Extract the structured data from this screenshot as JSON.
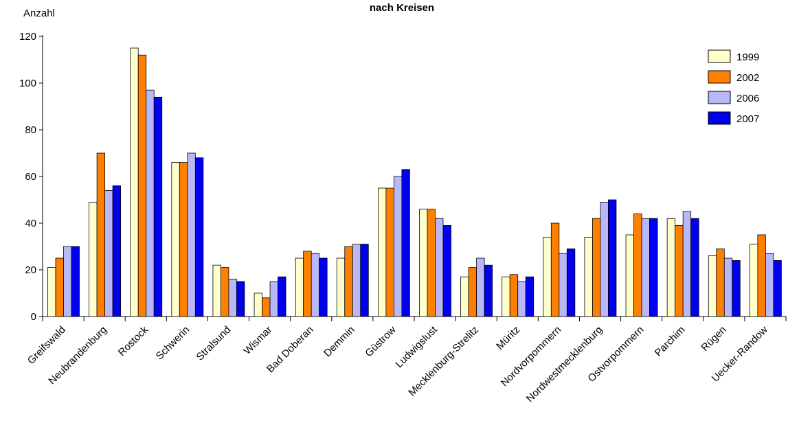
{
  "chart_data": {
    "type": "bar",
    "title": "nach Kreisen",
    "ylabel": "Anzahl",
    "xlabel": "",
    "ylim": [
      0,
      120
    ],
    "yticks": [
      0,
      20,
      40,
      60,
      80,
      100,
      120
    ],
    "legend_position": "top-right",
    "categories": [
      "Greifswald",
      "Neubrandenburg",
      "Rostock",
      "Schwerin",
      "Stralsund",
      "Wismar",
      "Bad Doberan",
      "Demmin",
      "Güstrow",
      "Ludwigslust",
      "Mecklenburg-Strelitz",
      "Müritz",
      "Nordvorpommern",
      "Nordwestmecklenburg",
      "Ostvorpommern",
      "Parchim",
      "Rügen",
      "Uecker-Randow"
    ],
    "series": [
      {
        "name": "1999",
        "color": "#ffffcc",
        "values": [
          21,
          49,
          115,
          66,
          22,
          10,
          25,
          25,
          55,
          46,
          17,
          17,
          34,
          34,
          35,
          42,
          26,
          31
        ]
      },
      {
        "name": "2002",
        "color": "#ff8000",
        "values": [
          25,
          70,
          112,
          66,
          21,
          8,
          28,
          30,
          55,
          46,
          21,
          18,
          40,
          42,
          44,
          39,
          29,
          35
        ]
      },
      {
        "name": "2006",
        "color": "#b8b8f8",
        "values": [
          30,
          54,
          97,
          70,
          16,
          15,
          27,
          31,
          60,
          42,
          25,
          15,
          27,
          49,
          42,
          45,
          25,
          27
        ]
      },
      {
        "name": "2007",
        "color": "#0000ee",
        "values": [
          30,
          56,
          94,
          68,
          15,
          17,
          25,
          31,
          63,
          39,
          22,
          17,
          29,
          50,
          42,
          42,
          24,
          24
        ]
      }
    ]
  }
}
